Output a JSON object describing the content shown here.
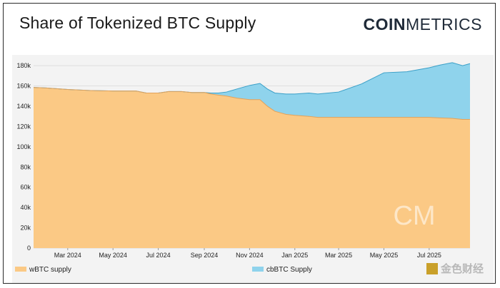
{
  "header": {
    "title": "Share of Tokenized BTC Supply"
  },
  "brand": {
    "logo_bold": "COIN",
    "logo_light": "METRICS",
    "watermark_mark": "CM",
    "corner_watermark": "金色财经"
  },
  "colors": {
    "wbtc": "#FBC985",
    "cbtc": "#8FD3EC",
    "panel_bg": "#f3f3f3"
  },
  "chart_data": {
    "type": "area",
    "stacked": true,
    "y_ticks": [
      "0",
      "20k",
      "40k",
      "60k",
      "80k",
      "100k",
      "120k",
      "140k",
      "160k",
      "180k"
    ],
    "ylim": [
      0,
      185000
    ],
    "x_ticks": [
      "Mar 2024",
      "May 2024",
      "Jul 2024",
      "Sep 2024",
      "Nov 2024",
      "Jan 2025",
      "Mar 2025",
      "May 2025",
      "Jul 2025"
    ],
    "x_tick_dates": [
      "2024-03-01",
      "2024-05-01",
      "2024-07-01",
      "2024-09-01",
      "2024-11-01",
      "2025-01-01",
      "2025-03-01",
      "2025-05-01",
      "2025-07-01"
    ],
    "xlim": [
      "2024-01-15",
      "2025-08-25"
    ],
    "x": [
      "2024-01-15",
      "2024-02-01",
      "2024-03-01",
      "2024-04-01",
      "2024-05-01",
      "2024-06-01",
      "2024-06-15",
      "2024-07-01",
      "2024-07-15",
      "2024-08-01",
      "2024-08-15",
      "2024-09-01",
      "2024-09-10",
      "2024-09-20",
      "2024-10-01",
      "2024-10-15",
      "2024-11-01",
      "2024-11-15",
      "2024-11-25",
      "2024-12-05",
      "2024-12-20",
      "2025-01-01",
      "2025-01-20",
      "2025-02-01",
      "2025-03-01",
      "2025-04-01",
      "2025-05-01",
      "2025-06-01",
      "2025-07-01",
      "2025-07-15",
      "2025-08-01",
      "2025-08-15",
      "2025-08-25"
    ],
    "series": [
      {
        "name": "wBTC supply",
        "values": [
          158500,
          158000,
          156500,
          155500,
          155000,
          155000,
          153000,
          153000,
          154500,
          154500,
          153500,
          153500,
          152000,
          151000,
          150000,
          148000,
          146500,
          146500,
          140000,
          135000,
          132000,
          131000,
          130000,
          129000,
          129000,
          129000,
          129000,
          129000,
          129000,
          128500,
          128000,
          127000,
          127000
        ]
      },
      {
        "name": "cbBTC Supply",
        "values": [
          0,
          0,
          0,
          0,
          0,
          0,
          0,
          0,
          0,
          0,
          0,
          0,
          1000,
          2000,
          4000,
          9000,
          14000,
          16000,
          17000,
          18000,
          20000,
          21000,
          23000,
          23000,
          25000,
          33000,
          44000,
          45000,
          49000,
          52000,
          55000,
          53000,
          55000
        ]
      }
    ],
    "legend_position": "bottom",
    "grid": true
  }
}
